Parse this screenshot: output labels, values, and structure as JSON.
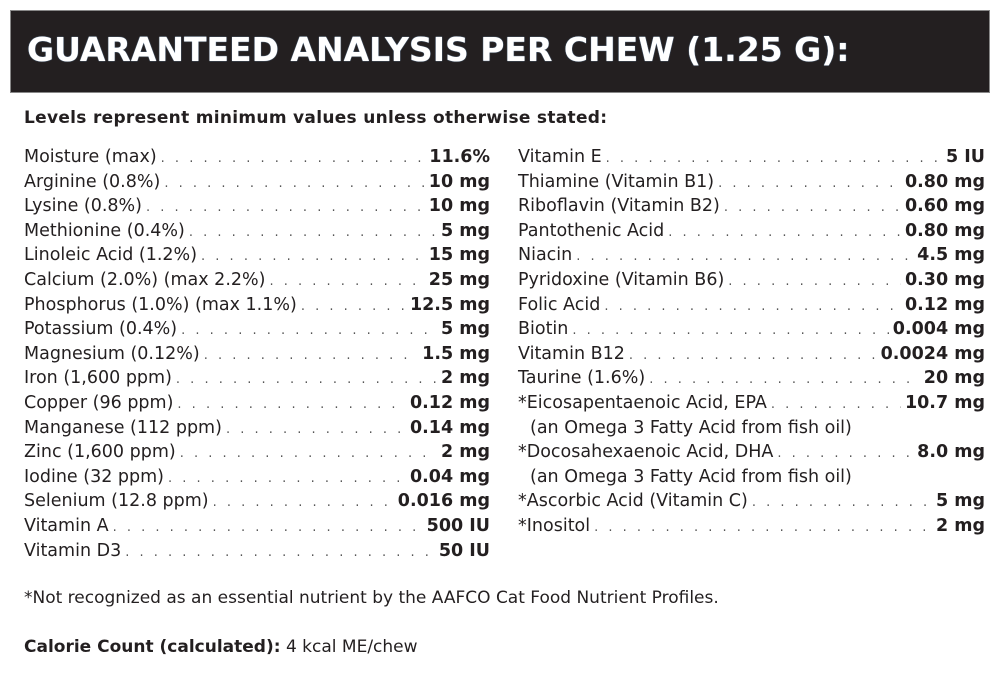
{
  "title": "GUARANTEED ANALYSIS PER CHEW (1.25 G):",
  "intro": "Levels represent minimum values unless otherwise stated:",
  "left": [
    {
      "name": "Moisture (max)",
      "value": "11.6%"
    },
    {
      "name": "Arginine (0.8%)",
      "value": "10 mg"
    },
    {
      "name": "Lysine (0.8%)",
      "value": "10 mg"
    },
    {
      "name": "Methionine (0.4%)",
      "value": "5 mg"
    },
    {
      "name": "Linoleic Acid (1.2%)",
      "value": "15 mg"
    },
    {
      "name": "Calcium (2.0%) (max 2.2%)",
      "value": "25 mg"
    },
    {
      "name": "Phosphorus (1.0%) (max 1.1%)",
      "value": "12.5 mg"
    },
    {
      "name": "Potassium (0.4%)",
      "value": "5 mg"
    },
    {
      "name": "Magnesium (0.12%)",
      "value": "1.5 mg"
    },
    {
      "name": "Iron (1,600 ppm)",
      "value": "2 mg"
    },
    {
      "name": "Copper (96 ppm)",
      "value": "0.12 mg"
    },
    {
      "name": "Manganese (112 ppm)",
      "value": "0.14 mg"
    },
    {
      "name": "Zinc (1,600 ppm)",
      "value": "2 mg"
    },
    {
      "name": "Iodine (32 ppm)",
      "value": "0.04 mg"
    },
    {
      "name": "Selenium (12.8 ppm)",
      "value": "0.016 mg"
    },
    {
      "name": "Vitamin A",
      "value": "500 IU"
    },
    {
      "name": "Vitamin D3",
      "value": "50 IU"
    }
  ],
  "right": [
    {
      "name": "Vitamin E",
      "value": "5 IU"
    },
    {
      "name": "Thiamine (Vitamin B1)",
      "value": "0.80 mg"
    },
    {
      "name": "Riboflavin (Vitamin B2)",
      "value": "0.60 mg"
    },
    {
      "name": "Pantothenic Acid",
      "value": "0.80 mg"
    },
    {
      "name": "Niacin",
      "value": "4.5 mg"
    },
    {
      "name": "Pyridoxine (Vitamin B6)",
      "value": "0.30 mg"
    },
    {
      "name": "Folic Acid",
      "value": "0.12 mg"
    },
    {
      "name": "Biotin",
      "value": "0.004 mg"
    },
    {
      "name": "Vitamin B12",
      "value": "0.0024 mg"
    },
    {
      "name": "Taurine (1.6%)",
      "value": "20 mg"
    },
    {
      "name": "*Eicosapentaenoic Acid, EPA",
      "value": "10.7 mg",
      "note": "(an Omega 3 Fatty Acid from fish oil)"
    },
    {
      "name": "*Docosahexaenoic Acid, DHA",
      "value": "8.0 mg",
      "note": "(an Omega 3 Fatty Acid from fish oil)"
    },
    {
      "name": "*Ascorbic Acid (Vitamin C)",
      "value": "5 mg"
    },
    {
      "name": "*Inositol",
      "value": "2 mg"
    }
  ],
  "footnote": "*Not recognized as an essential nutrient by the AAFCO Cat Food Nutrient Profiles.",
  "calorie": {
    "label": "Calorie Count (calculated):",
    "value": " 4 kcal ME/chew"
  }
}
